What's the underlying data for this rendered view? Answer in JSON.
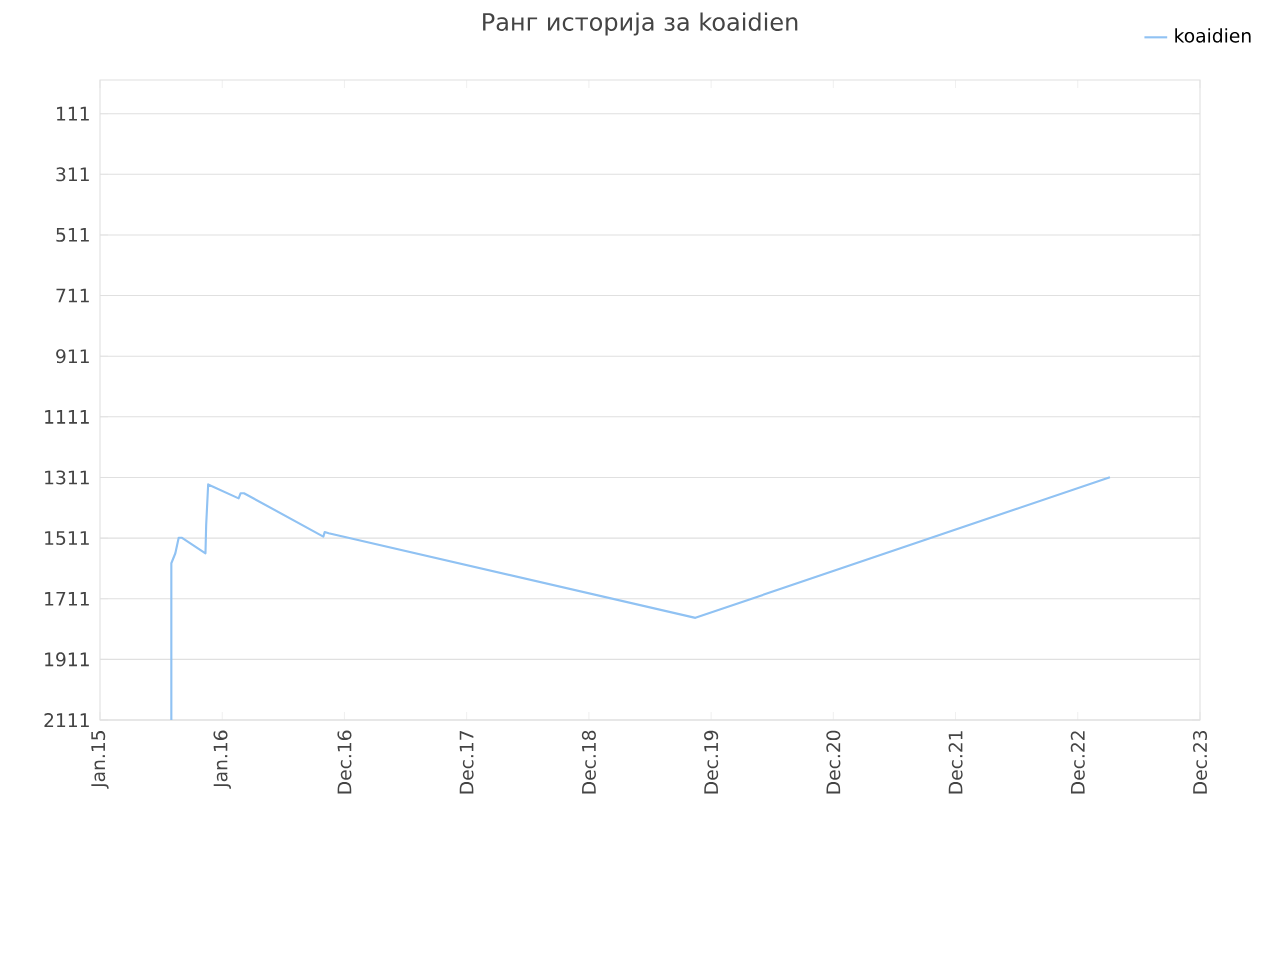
{
  "chart_data": {
    "type": "line",
    "title": "Ранг историја за koaidien",
    "x": [
      "2015-08-02",
      "2015-08-02",
      "2015-08-14",
      "2015-08-24",
      "2015-09-03",
      "2015-11-12",
      "2015-11-14",
      "2015-11-20",
      "2016-02-19",
      "2016-02-25",
      "2016-03-06",
      "2016-10-29",
      "2016-11-02",
      "2016-11-14",
      "2019-11-14",
      "2023-04-05"
    ],
    "series": [
      {
        "name": "koaidien",
        "color": "#90c2f3",
        "values": [
          2111,
          1594,
          1561,
          1510,
          1510,
          1561,
          1469,
          1334,
          1380,
          1363,
          1363,
          1506,
          1491,
          1495,
          1774,
          1310
        ]
      }
    ],
    "xlim": [
      "2015-01-01",
      "2023-12-30"
    ],
    "xticks": [
      {
        "value": "2015-01-01",
        "label": "Jan.15"
      },
      {
        "value": "2016-01-01",
        "label": "Jan.16"
      },
      {
        "value": "2016-12-31",
        "label": "Dec.16"
      },
      {
        "value": "2017-12-31",
        "label": "Dec.17"
      },
      {
        "value": "2018-12-31",
        "label": "Dec.18"
      },
      {
        "value": "2019-12-31",
        "label": "Dec.19"
      },
      {
        "value": "2020-12-30",
        "label": "Dec.20"
      },
      {
        "value": "2021-12-30",
        "label": "Dec.21"
      },
      {
        "value": "2022-12-30",
        "label": "Dec.22"
      },
      {
        "value": "2023-12-30",
        "label": "Dec.23"
      }
    ],
    "ylim": [
      2111,
      0
    ],
    "yticks": [
      111,
      311,
      511,
      711,
      911,
      1111,
      1311,
      1511,
      1711,
      1911,
      2111
    ],
    "grid": "y",
    "legend": "top right"
  }
}
